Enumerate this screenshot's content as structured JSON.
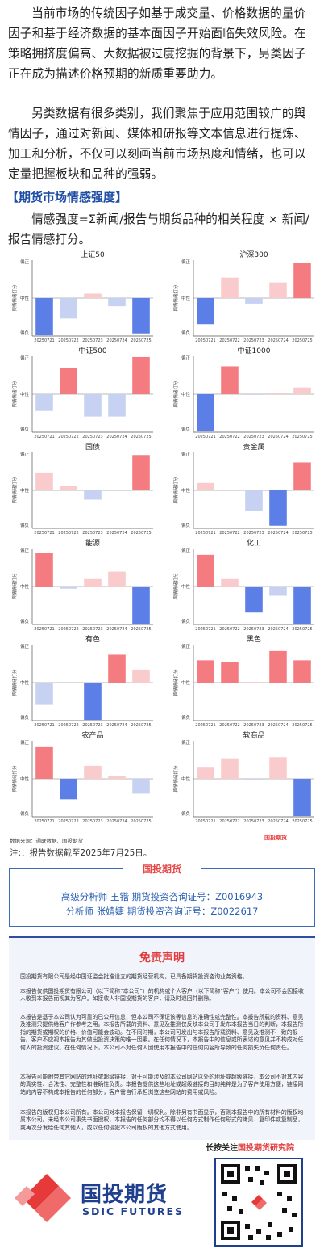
{
  "intro": {
    "p1": "当前市场的传统因子如基于成交量、价格数据的量价因子和基于经济数据的基本面因子开始面临失效风险。在策略拥挤度偏高、大数据被过度挖掘的背景下，另类因子正在成为描述价格预期的新质重要助力。",
    "p2": "另类数据有很多类别，我们聚焦于应用范围较广的舆情因子，通过对新闻、媒体和研报等文本信息进行提炼、加工和分析，不仅可以刻画当前市场热度和情绪，也可以定量把握板块和品种的强弱。"
  },
  "heading": "【期货市场情感强度】",
  "formula": "情感强度=Σ新闻/报告与期货品种的相关程度 × 新闻/报告情感打分。",
  "chart_common": {
    "y_label": "舆情情绪打分",
    "y_ticks": [
      "偏正",
      "中性",
      "偏负"
    ],
    "categories": [
      "20250721",
      "20250722",
      "20250723",
      "20250724",
      "20250725"
    ],
    "colors": {
      "pos_strong": "#f47c80",
      "pos_weak": "#f9cbcd",
      "neg_strong": "#5b7fe6",
      "neg_weak": "#c7d2f3"
    }
  },
  "chart_data": [
    {
      "type": "bar",
      "title": "上证50",
      "values": [
        -1.0,
        -0.55,
        0.12,
        -0.22,
        -0.95
      ]
    },
    {
      "type": "bar",
      "title": "沪深300",
      "values": [
        -0.7,
        0.55,
        -0.15,
        0.42,
        0.95
      ]
    },
    {
      "type": "bar",
      "title": "中证500",
      "values": [
        -0.45,
        0.7,
        -0.6,
        -0.6,
        1.0
      ]
    },
    {
      "type": "bar",
      "title": "中证1000",
      "values": [
        -1.0,
        0.75,
        -0.02,
        0.03,
        0.18
      ]
    },
    {
      "type": "bar",
      "title": "国债",
      "values": [
        0.48,
        0.12,
        -0.25,
        0.02,
        0.95
      ]
    },
    {
      "type": "bar",
      "title": "贵金属",
      "values": [
        0.2,
        0.02,
        -0.55,
        -0.95,
        0.75
      ]
    },
    {
      "type": "bar",
      "title": "能源",
      "values": [
        0.9,
        -0.06,
        0.2,
        0.4,
        -1.0
      ]
    },
    {
      "type": "bar",
      "title": "化工",
      "values": [
        0.85,
        0.2,
        -0.7,
        -0.25,
        -1.0
      ]
    },
    {
      "type": "bar",
      "title": "有色",
      "values": [
        -0.6,
        -0.02,
        -1.0,
        0.75,
        0.35
      ]
    },
    {
      "type": "bar",
      "title": "黑色",
      "values": [
        0.6,
        0.55,
        0.02,
        0.85,
        0.6
      ]
    },
    {
      "type": "bar",
      "title": "农产品",
      "values": [
        0.85,
        -0.55,
        0.35,
        0.08,
        -0.4
      ]
    },
    {
      "type": "bar",
      "title": "软商品",
      "values": [
        0.3,
        0.55,
        -0.02,
        0.58,
        -1.0
      ]
    }
  ],
  "source": "数据来源：通联数据、国投期货",
  "logo_small": "国投期货",
  "note": "注:：报告数据截至2025年7月25日。",
  "analysts": {
    "title": "国投期货",
    "line1": "高级分析师  王锴  期货投资咨询证号：Z0016943",
    "line2": "分析师  张婧婕  期货投资咨询证号：Z0022617"
  },
  "disclaimer": {
    "title": "免责声明",
    "p1": "国投期货有限公司是经中国证监会批准设立的期货经营机构，已具备期货投资咨询业务资格。",
    "p2": "本报告仅供国投期货有限公司（以下简称“本公司”）的机构或个人客户（以下简称“客户”）使用。本公司不会因接收人收到本报告而视其为客户。如接收人非国投期货的客户，请及时退回并删除。",
    "p3": "本报告是基于本公司认为可靠的已公开信息，但本公司不保证该等信息的准确性或完整性。本报告所载的资料、意见及推测只提供给客户作参考之用。本报告所载的资料、意见及推测仅反映本公司于发布本报告当日的判断，本报告所指的期货或期权的价格、价值可能会波动。在不同时期，本公司可发出与本报告所载资料、意见及推测不一致的报告。客户不应视本报告为其做出投资决策的唯一因素。在任何情况下，本报告中的信息或所表述的意见并不构成对任何人的投资建议。在任何情况下，本公司不对任何人因使用本报告中的任何内容所导致的任何损失负任何责任。",
    "p4": "本报告可能附带其它网站的地址或超级链接，对于可能涉及的本公司网站以外的地址或超级链接，本公司不对其内容的真实性、合法性、完整性和准确性负责。本报告提供这些地址或超级链接的目的纯粹是为了客户使用方便，链接网站的内容不构成本报告的任何部分，客户需自行承担浏览这些网站的费用或风险。",
    "p5": "本报告的版权归本公司所有。本公司对本报告保留一切权利。除非另有书面显示，否则本报告中的所有材料的版权均属本公司。未经本公司事先书面授权，本报告的任何部分均不得以任何方式制作任何形式的拷贝、复印件或复制品，或再次分发给任何其他人，或以任何侵犯本公司版权的其他方式使用。"
  },
  "footer": {
    "follow_prefix": "长按关注",
    "follow_name": "国投期货研究院",
    "brand_cn": "国投期货",
    "brand_en": "SDIC FUTURES"
  }
}
